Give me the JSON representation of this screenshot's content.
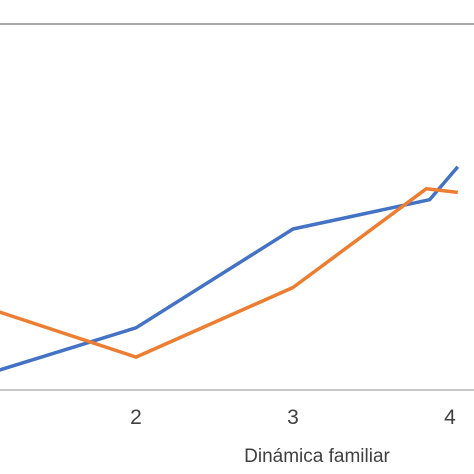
{
  "chart_data": {
    "type": "line",
    "xlabel": "Dinámica familiar",
    "ylabel": "",
    "title": "",
    "x_ticks": [
      "2",
      "3",
      "4"
    ],
    "xlim": [
      0.85,
      4.05
    ],
    "ylim": [
      0,
      1
    ],
    "grid": "horizontal",
    "legend": "none",
    "series": [
      {
        "color": "#4472C4",
        "points": [
          [
            0.87,
            0.02
          ],
          [
            2,
            0.17
          ],
          [
            3,
            0.44
          ],
          [
            3.87,
            0.52
          ],
          [
            4.05,
            0.61
          ]
        ]
      },
      {
        "color": "#ED7D31",
        "points": [
          [
            0.87,
            0.25
          ],
          [
            2,
            0.09
          ],
          [
            3,
            0.28
          ],
          [
            3.85,
            0.55
          ],
          [
            4.05,
            0.54
          ]
        ]
      }
    ]
  }
}
